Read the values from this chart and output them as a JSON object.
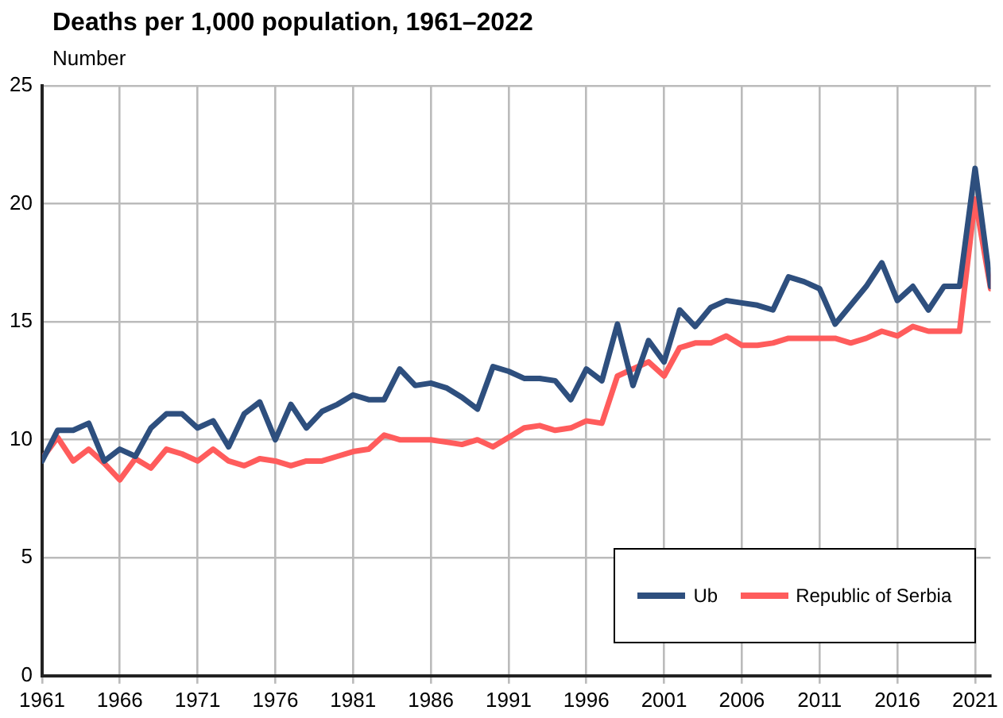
{
  "chart_data": {
    "type": "line",
    "title": "Deaths per 1,000 population, 1961–2022",
    "ylabel": "Number",
    "x": [
      1961,
      1962,
      1963,
      1964,
      1965,
      1966,
      1967,
      1968,
      1969,
      1970,
      1971,
      1972,
      1973,
      1974,
      1975,
      1976,
      1977,
      1978,
      1979,
      1980,
      1981,
      1982,
      1983,
      1984,
      1985,
      1986,
      1987,
      1988,
      1989,
      1990,
      1991,
      1992,
      1993,
      1994,
      1995,
      1996,
      1997,
      1998,
      1999,
      2000,
      2001,
      2002,
      2003,
      2004,
      2005,
      2006,
      2007,
      2008,
      2009,
      2010,
      2011,
      2012,
      2013,
      2014,
      2015,
      2016,
      2017,
      2018,
      2019,
      2020,
      2021,
      2022
    ],
    "series": [
      {
        "name": "Ub",
        "color": "#2e4f7e",
        "values": [
          9.1,
          10.4,
          10.4,
          10.7,
          9.1,
          9.6,
          9.3,
          10.5,
          11.1,
          11.1,
          10.5,
          10.8,
          9.7,
          11.1,
          11.6,
          10,
          11.5,
          10.5,
          11.2,
          11.5,
          11.9,
          11.7,
          11.7,
          13,
          12.3,
          12.4,
          12.2,
          11.8,
          11.3,
          13.1,
          12.9,
          12.6,
          12.6,
          12.5,
          11.7,
          13,
          12.5,
          14.9,
          12.3,
          14.2,
          13.3,
          15.5,
          14.8,
          15.6,
          15.9,
          15.8,
          15.7,
          15.5,
          16.9,
          16.7,
          16.4,
          14.9,
          15.7,
          16.5,
          17.5,
          15.9,
          16.5,
          15.5,
          16.5,
          16.5,
          21.5,
          16.5
        ]
      },
      {
        "name": "Republic of Serbia",
        "color": "#ff5c5c",
        "values": [
          9.2,
          10.1,
          9.1,
          9.6,
          9,
          8.3,
          9.2,
          8.8,
          9.6,
          9.4,
          9.1,
          9.6,
          9.1,
          8.9,
          9.2,
          9.1,
          8.9,
          9.1,
          9.1,
          9.3,
          9.5,
          9.6,
          10.2,
          10,
          10,
          10,
          9.9,
          9.8,
          10,
          9.7,
          10.1,
          10.5,
          10.6,
          10.4,
          10.5,
          10.8,
          10.7,
          12.7,
          13,
          13.3,
          12.7,
          13.9,
          14.1,
          14.1,
          14.4,
          14,
          14,
          14.1,
          14.3,
          14.3,
          14.3,
          14.3,
          14.1,
          14.3,
          14.6,
          14.4,
          14.8,
          14.6,
          14.6,
          14.6,
          20.2,
          16.4
        ]
      }
    ],
    "xlim": [
      1961,
      2022
    ],
    "xticks": [
      1961,
      1966,
      1971,
      1976,
      1981,
      1986,
      1991,
      1996,
      2001,
      2006,
      2011,
      2016,
      2021
    ],
    "ylim": [
      0,
      25
    ],
    "yticks": [
      0,
      5,
      10,
      15,
      20,
      25
    ],
    "grid": true,
    "legend": "bottom right",
    "marker": "none",
    "line_style": "solid"
  }
}
